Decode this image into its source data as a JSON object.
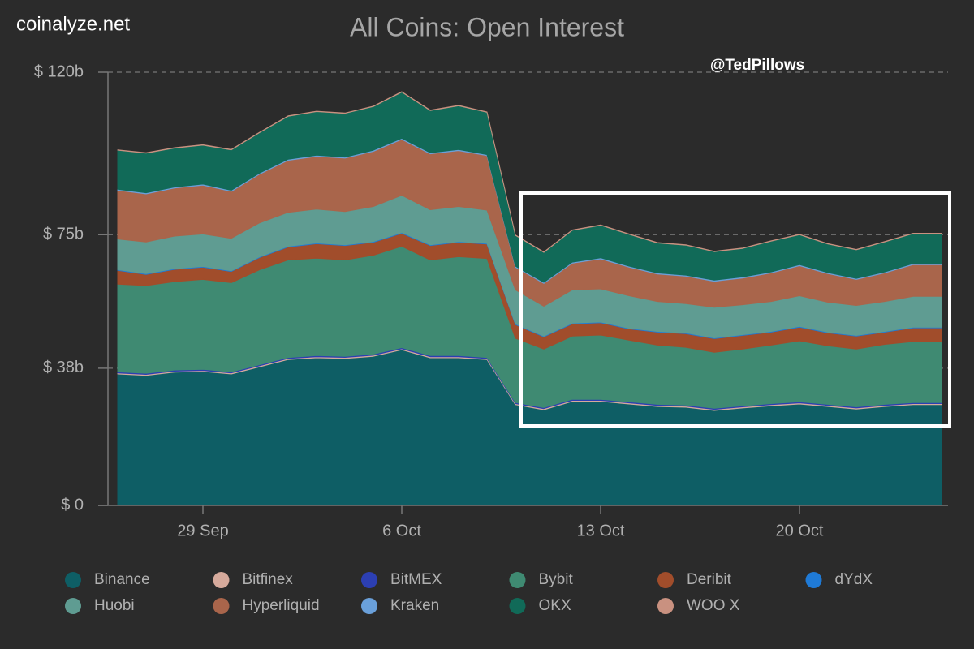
{
  "chart_data": {
    "type": "stacked-area",
    "title": "All Coins: Open Interest",
    "watermark": "coinalyze.net",
    "annotation": "@TedPillows",
    "categories": [
      null,
      null,
      null,
      "29 Sep",
      null,
      null,
      null,
      null,
      null,
      null,
      "6 Oct",
      null,
      null,
      null,
      null,
      null,
      null,
      "13 Oct",
      null,
      null,
      null,
      null,
      null,
      null,
      "20 Oct",
      null,
      null,
      null,
      null,
      null
    ],
    "ylim": [
      0,
      120
    ],
    "yticks": [
      {
        "value": 0,
        "label": "$ 0"
      },
      {
        "value": 38,
        "label": "$ 38b"
      },
      {
        "value": 75,
        "label": "$ 75b"
      },
      {
        "value": 120,
        "label": "$ 120b"
      }
    ],
    "grid": true,
    "legend": "bottom",
    "series": [
      {
        "name": "Binance",
        "color": "#0e5e65",
        "values": [
          36.4,
          36.0,
          36.9,
          37.1,
          36.4,
          38.4,
          40.4,
          40.9,
          40.7,
          41.3,
          43.1,
          40.9,
          40.9,
          40.4,
          27.9,
          26.5,
          28.8,
          28.8,
          28.1,
          27.4,
          27.2,
          26.3,
          27.0,
          27.6,
          28.1,
          27.4,
          26.7,
          27.4,
          27.9,
          27.9
        ]
      },
      {
        "name": "Bitfinex",
        "color": "#d6aa9c",
        "values": [
          0.3,
          0.3,
          0.3,
          0.3,
          0.3,
          0.3,
          0.3,
          0.3,
          0.3,
          0.3,
          0.3,
          0.3,
          0.3,
          0.3,
          0.3,
          0.3,
          0.3,
          0.3,
          0.3,
          0.3,
          0.3,
          0.3,
          0.3,
          0.3,
          0.3,
          0.3,
          0.3,
          0.3,
          0.3,
          0.3
        ]
      },
      {
        "name": "BitMEX",
        "color": "#2c3fb3",
        "values": [
          0.3,
          0.3,
          0.3,
          0.3,
          0.3,
          0.3,
          0.3,
          0.3,
          0.3,
          0.3,
          0.3,
          0.3,
          0.3,
          0.3,
          0.3,
          0.3,
          0.3,
          0.3,
          0.3,
          0.3,
          0.3,
          0.3,
          0.3,
          0.3,
          0.3,
          0.3,
          0.3,
          0.3,
          0.3,
          0.3
        ]
      },
      {
        "name": "Bybit",
        "color": "#3f8a72",
        "values": [
          24.3,
          24.3,
          24.5,
          24.9,
          24.7,
          26.3,
          27.0,
          27.0,
          26.7,
          27.4,
          28.1,
          26.5,
          27.4,
          27.4,
          17.8,
          16.2,
          17.5,
          17.8,
          17.1,
          16.4,
          16.0,
          15.5,
          15.7,
          16.2,
          16.9,
          16.2,
          16.0,
          16.6,
          16.9,
          16.9
        ]
      },
      {
        "name": "Deribit",
        "color": "#a14d2b",
        "values": [
          3.8,
          3.1,
          3.4,
          3.4,
          3.1,
          3.4,
          3.6,
          4.0,
          4.0,
          3.6,
          3.6,
          4.0,
          4.0,
          4.0,
          3.8,
          3.4,
          3.4,
          3.4,
          3.1,
          3.6,
          3.8,
          3.8,
          3.8,
          3.6,
          3.8,
          3.6,
          3.6,
          3.4,
          3.8,
          3.8
        ]
      },
      {
        "name": "dYdX",
        "color": "#1f7ad6",
        "values": [
          0.2,
          0.2,
          0.2,
          0.2,
          0.2,
          0.2,
          0.2,
          0.2,
          0.2,
          0.2,
          0.2,
          0.2,
          0.2,
          0.2,
          0.2,
          0.2,
          0.2,
          0.2,
          0.2,
          0.2,
          0.2,
          0.2,
          0.2,
          0.2,
          0.2,
          0.2,
          0.2,
          0.2,
          0.2,
          0.2
        ]
      },
      {
        "name": "Huobi",
        "color": "#5f9c92",
        "values": [
          8.5,
          8.8,
          9.0,
          9.0,
          9.0,
          9.4,
          9.4,
          9.4,
          9.2,
          9.7,
          10.3,
          9.7,
          9.7,
          9.2,
          9.4,
          8.3,
          9.2,
          9.2,
          9.0,
          8.3,
          8.1,
          8.5,
          8.3,
          8.3,
          8.5,
          8.3,
          8.3,
          8.3,
          8.5,
          8.5
        ]
      },
      {
        "name": "Hyperliquid",
        "color": "#a9654b",
        "values": [
          13.5,
          13.3,
          13.3,
          13.5,
          13.0,
          13.5,
          14.4,
          14.6,
          14.8,
          15.3,
          15.5,
          15.5,
          15.5,
          15.1,
          6.3,
          6.3,
          7.4,
          8.3,
          7.9,
          7.6,
          7.6,
          7.2,
          7.4,
          7.9,
          8.3,
          7.9,
          7.2,
          7.9,
          8.8,
          8.8
        ]
      },
      {
        "name": "Kraken",
        "color": "#6aa0da",
        "values": [
          0.3,
          0.3,
          0.3,
          0.3,
          0.3,
          0.3,
          0.3,
          0.3,
          0.3,
          0.3,
          0.3,
          0.3,
          0.3,
          0.3,
          0.3,
          0.3,
          0.3,
          0.3,
          0.3,
          0.3,
          0.3,
          0.3,
          0.3,
          0.3,
          0.3,
          0.3,
          0.3,
          0.3,
          0.3,
          0.3
        ]
      },
      {
        "name": "OKX",
        "color": "#116a58",
        "values": [
          10.8,
          11.0,
          10.8,
          10.8,
          11.2,
          11.2,
          11.9,
          12.1,
          12.1,
          12.1,
          12.8,
          11.7,
          12.1,
          11.7,
          8.5,
          8.3,
          8.8,
          9.0,
          8.8,
          8.3,
          8.3,
          7.9,
          7.9,
          8.5,
          8.3,
          7.9,
          7.9,
          8.3,
          8.3,
          8.3
        ]
      },
      {
        "name": "WOO X",
        "color": "#c99180",
        "values": [
          0.1,
          0.1,
          0.1,
          0.1,
          0.1,
          0.1,
          0.1,
          0.1,
          0.1,
          0.1,
          0.1,
          0.1,
          0.1,
          0.1,
          0.1,
          0.1,
          0.1,
          0.1,
          0.1,
          0.1,
          0.1,
          0.1,
          0.1,
          0.1,
          0.1,
          0.1,
          0.1,
          0.1,
          0.1,
          0.1
        ]
      }
    ]
  }
}
